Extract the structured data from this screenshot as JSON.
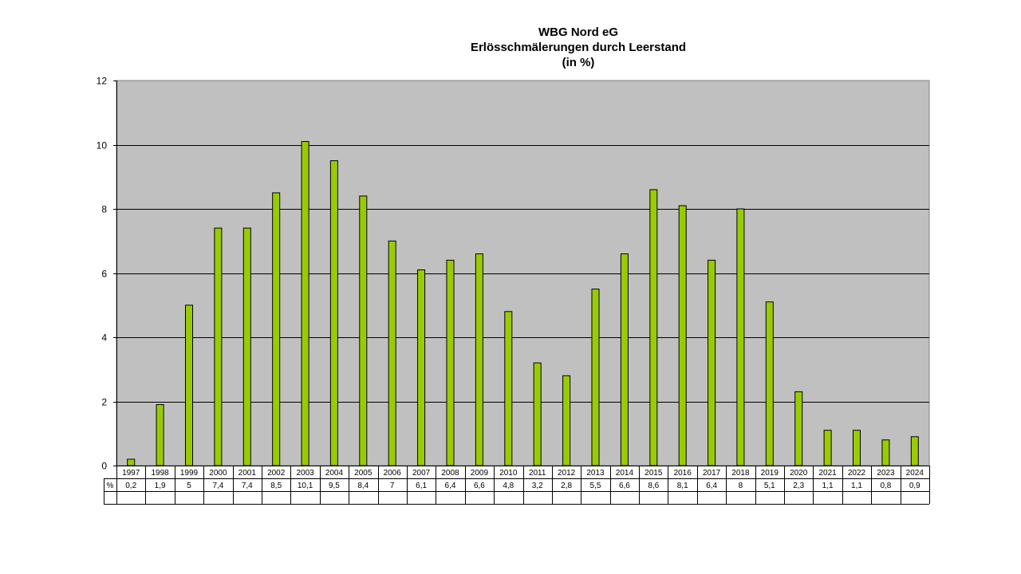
{
  "chart_data": {
    "type": "bar",
    "title": [
      "WBG Nord eG",
      "Erlösschmälerungen durch Leerstand",
      "(in %)"
    ],
    "categories": [
      "1997",
      "1998",
      "1999",
      "2000",
      "2001",
      "2002",
      "2003",
      "2004",
      "2005",
      "2006",
      "2007",
      "2008",
      "2009",
      "2010",
      "2011",
      "2012",
      "2013",
      "2014",
      "2015",
      "2016",
      "2017",
      "2018",
      "2019",
      "2020",
      "2021",
      "2022",
      "2023",
      "2024"
    ],
    "series": [
      {
        "name": "%",
        "values": [
          0.2,
          1.9,
          5,
          7.4,
          7.4,
          8.5,
          10.1,
          9.5,
          8.4,
          7,
          6.1,
          6.4,
          6.6,
          4.8,
          3.2,
          2.8,
          5.5,
          6.6,
          8.6,
          8.1,
          6.4,
          8,
          5.1,
          2.3,
          1.1,
          1.1,
          0.8,
          0.9
        ],
        "labels": [
          "0,2",
          "1,9",
          "5",
          "7,4",
          "7,4",
          "8,5",
          "10,1",
          "9,5",
          "8,4",
          "7",
          "6,1",
          "6,4",
          "6,6",
          "4,8",
          "3,2",
          "2,8",
          "5,5",
          "6,6",
          "8,6",
          "8,1",
          "6,4",
          "8",
          "5,1",
          "2,3",
          "1,1",
          "1,1",
          "0,8",
          "0,9"
        ]
      }
    ],
    "ylim": [
      0,
      12
    ],
    "yticks": [
      0,
      2,
      4,
      6,
      8,
      10,
      12
    ],
    "grid": true,
    "legend": "data-table",
    "colors": {
      "plot_background": "#c0c0c0",
      "bar_fill": "#99cc00",
      "bar_stroke": "#000000",
      "gridline": "#000000"
    }
  }
}
